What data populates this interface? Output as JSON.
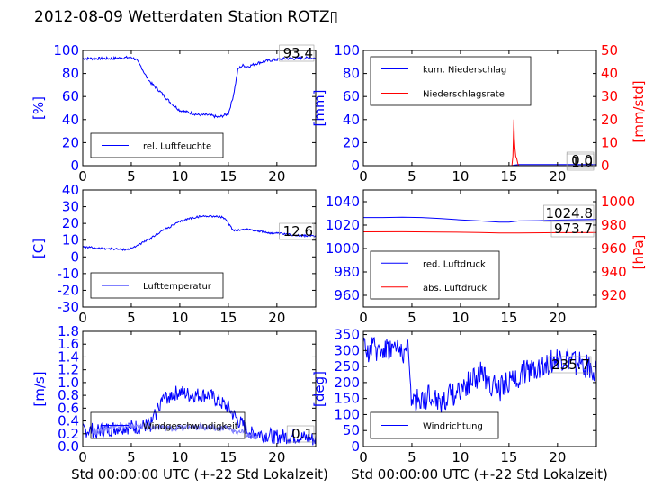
{
  "page": {
    "title": "2012-08-09 Wetterdaten Station ROTZ▯",
    "xlabel": "Std 00:00:00 UTC (+-22 Std Lokalzeit)"
  },
  "colors": {
    "left_axis": "#0000ff",
    "right_axis": "#ff0000",
    "light_series": "#8080ff"
  },
  "chart_data": [
    {
      "id": "humidity",
      "type": "line",
      "ylabel": "[%]",
      "xlim": [
        0,
        24
      ],
      "ylim": [
        0,
        100
      ],
      "xticks": [
        0,
        5,
        10,
        15,
        20
      ],
      "yticks": [
        0,
        20,
        40,
        60,
        80,
        100
      ],
      "legend": {
        "placement": "lower-left",
        "entries": [
          "rel. Luftfeuchte"
        ]
      },
      "current_value": "93.4",
      "series": [
        {
          "name": "rel. Luftfeuchte",
          "color": "#0000ff",
          "noise": 1.2,
          "x": [
            0,
            1,
            2,
            3,
            4,
            5,
            5.5,
            6,
            6.5,
            7,
            7.5,
            8,
            9,
            10,
            11,
            12,
            13,
            14,
            15,
            15.5,
            16,
            16.5,
            17,
            18,
            19,
            20,
            21,
            22,
            23,
            24
          ],
          "y": [
            93,
            93,
            93,
            93,
            93.5,
            94,
            92,
            86,
            78,
            72,
            68,
            64,
            55,
            48,
            46,
            44,
            44,
            42,
            45,
            60,
            84,
            87,
            86,
            89,
            91,
            92,
            93,
            93,
            93.4,
            93.4
          ]
        }
      ]
    },
    {
      "id": "precip",
      "type": "line",
      "ylabel": "[mm]",
      "ylabel_right": "[mm/std]",
      "xlim": [
        0,
        24
      ],
      "ylim": [
        0,
        100
      ],
      "ylim_right": [
        0,
        50
      ],
      "xticks": [
        0,
        5,
        10,
        15,
        20
      ],
      "yticks": [
        0,
        20,
        40,
        60,
        80,
        100
      ],
      "yticks_right": [
        0,
        10,
        20,
        30,
        40,
        50
      ],
      "legend": {
        "placement": "top-left",
        "entries": [
          "kum. Niederschlag",
          "Niederschlagsrate"
        ]
      },
      "current_value_left": "1.0",
      "current_value_right": "0.0",
      "series": [
        {
          "name": "kum. Niederschlag",
          "color": "#0000ff",
          "axis": "left",
          "x": [
            0,
            15.3,
            15.5,
            15.8,
            16,
            24
          ],
          "y": [
            0,
            0,
            0.4,
            0.8,
            1.0,
            1.0
          ]
        },
        {
          "name": "Niederschlagsrate",
          "color": "#ff0000",
          "axis": "right",
          "x": [
            0,
            15.3,
            15.4,
            15.5,
            15.55,
            15.6,
            15.7,
            15.8,
            15.9,
            16.0,
            24
          ],
          "y": [
            0,
            0,
            4,
            20,
            12,
            8,
            4,
            3,
            1,
            0,
            0
          ]
        }
      ]
    },
    {
      "id": "temperature",
      "type": "line",
      "ylabel": "[C]",
      "xlim": [
        0,
        24
      ],
      "ylim": [
        -30,
        40
      ],
      "xticks": [
        0,
        5,
        10,
        15,
        20
      ],
      "yticks": [
        -30,
        -20,
        -10,
        0,
        10,
        20,
        30,
        40
      ],
      "legend": {
        "placement": "lower-left",
        "entries": [
          "Lufttemperatur"
        ]
      },
      "current_value": "12.6",
      "series": [
        {
          "name": "Lufttemperatur",
          "color": "#0000ff",
          "noise": 0.6,
          "x": [
            0,
            1,
            2,
            3,
            4,
            4.5,
            5,
            6,
            7,
            8,
            9,
            10,
            11,
            12,
            13,
            14,
            14.5,
            15,
            15.5,
            16,
            17,
            18,
            19,
            20,
            21,
            22,
            23,
            24
          ],
          "y": [
            6,
            5.5,
            5,
            4.8,
            4.5,
            4.4,
            5,
            8,
            11,
            15,
            18,
            21,
            23,
            24,
            24.5,
            24,
            23.5,
            20,
            16,
            16,
            16.5,
            15.5,
            14.5,
            14,
            13.5,
            13,
            12.6,
            12.6
          ]
        }
      ]
    },
    {
      "id": "pressure",
      "type": "line",
      "ylabel_right": "[hPa]",
      "xlim": [
        0,
        24
      ],
      "ylim": [
        950,
        1050
      ],
      "ylim_right": [
        910,
        1010
      ],
      "xticks": [
        0,
        5,
        10,
        15,
        20
      ],
      "yticks": [
        960,
        980,
        1000,
        1020,
        1040
      ],
      "yticks_right": [
        920,
        940,
        960,
        980,
        1000
      ],
      "legend": {
        "placement": "lower-left",
        "entries": [
          "red. Luftdruck",
          "abs. Luftdruck"
        ]
      },
      "current_value_left": "1024.8",
      "current_value_right": "973.7",
      "series": [
        {
          "name": "red. Luftdruck",
          "color": "#0000ff",
          "axis": "left",
          "x": [
            0,
            2,
            4,
            6,
            8,
            10,
            12,
            14,
            15,
            16,
            18,
            20,
            22,
            24
          ],
          "y": [
            1026.5,
            1026.5,
            1026.8,
            1026.5,
            1025.5,
            1024.5,
            1023.5,
            1022.5,
            1022.5,
            1023.5,
            1023.8,
            1024.2,
            1024.6,
            1024.8
          ]
        },
        {
          "name": "abs. Luftdruck",
          "color": "#ff0000",
          "axis": "right",
          "x": [
            0,
            4,
            8,
            12,
            14,
            16,
            20,
            24
          ],
          "y": [
            974.2,
            974.3,
            974.1,
            973.7,
            973.3,
            973.3,
            973.5,
            973.7
          ]
        }
      ]
    },
    {
      "id": "windspeed",
      "type": "line",
      "ylabel": "[m/s]",
      "xlim": [
        0,
        24
      ],
      "ylim": [
        0,
        1.8
      ],
      "xticks": [
        0,
        5,
        10,
        15,
        20
      ],
      "yticks": [
        0.0,
        0.2,
        0.4,
        0.6,
        0.8,
        1.0,
        1.2,
        1.4,
        1.6,
        1.8
      ],
      "ytick_labels": [
        "0.0",
        "0.2",
        "0.4",
        "0.6",
        "0.8",
        "1.0",
        "1.2",
        "1.4",
        "1.6",
        "1.8"
      ],
      "legend": {
        "placement": "lower-left",
        "entries": [
          "Windgeschwindigkeit"
        ]
      },
      "current_value": "0.1",
      "series": [
        {
          "name": "Windgeschwindigkeit",
          "color": "#0000ff",
          "noise": 0.12,
          "x": [
            0,
            2,
            4,
            5,
            6,
            7,
            7.5,
            8,
            9,
            10,
            11,
            12,
            13,
            14,
            15,
            16,
            17,
            18,
            20,
            22,
            24
          ],
          "y": [
            0.25,
            0.25,
            0.3,
            0.3,
            0.3,
            0.35,
            0.5,
            0.7,
            0.8,
            0.85,
            0.8,
            0.8,
            0.8,
            0.7,
            0.6,
            0.4,
            0.25,
            0.2,
            0.15,
            0.15,
            0.1
          ]
        },
        {
          "name": "",
          "color": "#8080ff",
          "noise": 0.05,
          "x": [
            1,
            3,
            5,
            7,
            9,
            11,
            13,
            15,
            16.5,
            18
          ],
          "y": [
            0.22,
            0.3,
            0.32,
            0.3,
            0.28,
            0.3,
            0.3,
            0.28,
            0.22,
            0.15
          ]
        }
      ]
    },
    {
      "id": "winddir",
      "type": "line",
      "ylabel": "[deg]",
      "xlim": [
        0,
        24
      ],
      "ylim": [
        0,
        360
      ],
      "xticks": [
        0,
        5,
        10,
        15,
        20
      ],
      "yticks": [
        0,
        50,
        100,
        150,
        200,
        250,
        300,
        350
      ],
      "legend": {
        "placement": "lower-left",
        "entries": [
          "Windrichtung"
        ]
      },
      "current_value": "235.7",
      "series": [
        {
          "name": "Windrichtung",
          "color": "#0000ff",
          "noise": 40,
          "x": [
            0,
            1,
            2,
            3,
            4,
            4.6,
            5,
            6,
            7,
            8,
            9,
            10,
            11,
            12,
            13,
            14,
            15,
            16,
            17,
            18,
            19,
            20,
            21,
            22,
            23,
            24
          ],
          "y": [
            300,
            305,
            310,
            310,
            300,
            295,
            140,
            150,
            160,
            140,
            160,
            180,
            200,
            230,
            200,
            180,
            200,
            220,
            240,
            250,
            260,
            270,
            270,
            260,
            250,
            240
          ]
        }
      ]
    }
  ]
}
